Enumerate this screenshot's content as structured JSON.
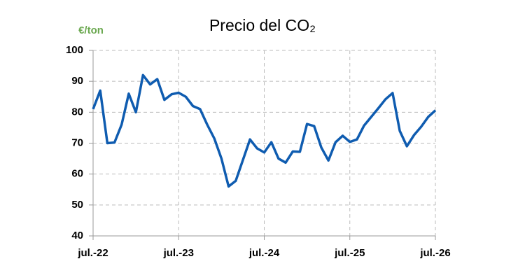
{
  "chart_data": {
    "type": "line",
    "title": "Precio del CO₂",
    "y_label": "€/ton",
    "categories": [
      "jul.-22",
      null,
      null,
      null,
      null,
      null,
      null,
      null,
      null,
      null,
      null,
      null,
      "jul.-23",
      null,
      null,
      null,
      null,
      null,
      null,
      null,
      null,
      null,
      null,
      null,
      "jul.-24",
      null,
      null,
      null,
      null,
      null,
      null,
      null,
      null,
      null,
      null,
      null,
      "jul.-25",
      null,
      null,
      null,
      null,
      null,
      null,
      null,
      null,
      null,
      null,
      null,
      "jul.-26"
    ],
    "series": [
      {
        "name": "CO2",
        "color": "#0f5cb0",
        "values": [
          81,
          87,
          70,
          70.2,
          76,
          86,
          80,
          92,
          89,
          90.7,
          84,
          85.8,
          86.3,
          85,
          82,
          81,
          76,
          71.5,
          65,
          56,
          57.8,
          64.5,
          71.2,
          68.3,
          67,
          70.3,
          65,
          63.7,
          67.3,
          67.2,
          76.2,
          75.5,
          68.6,
          64.4,
          70.3,
          72.4,
          70.4,
          71.2,
          75.7,
          78.5,
          81.3,
          84.2,
          86.2,
          74,
          69,
          72.6,
          75.3,
          78.5,
          80.6
        ]
      }
    ],
    "ylim": [
      40,
      100
    ],
    "yticks": [
      40,
      50,
      60,
      70,
      80,
      90,
      100
    ],
    "grid": true
  }
}
